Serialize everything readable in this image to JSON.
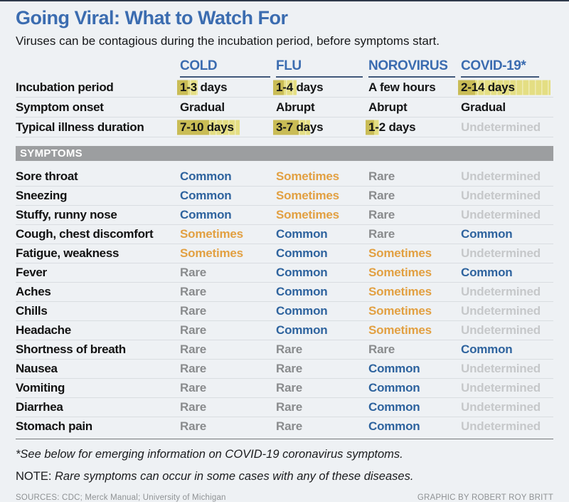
{
  "page": {
    "title": "Going Viral: What to Watch For",
    "subtitle": "Viruses can be contagious during the incubation period, before symptoms start."
  },
  "colors": {
    "accent_blue": "#3b6cb0",
    "common_blue": "#2e639e",
    "sometimes_orange": "#e2a042",
    "rare_gray": "#898b8d",
    "undetermined_gray": "#c6c8ca",
    "highlight_dark": "#c9bc55",
    "highlight_light": "#e4de83",
    "symptoms_bar_gray": "#9c9ea0"
  },
  "table": {
    "columns": [
      "COLD",
      "FLU",
      "NOROVIRUS",
      "COVID-19*"
    ],
    "info_rows": [
      {
        "label": "Incubation period",
        "cells": [
          {
            "text": "1-3 days",
            "bar": {
              "dark": 15,
              "total": 29
            }
          },
          {
            "text": "1-4 days",
            "bar": {
              "dark": 15,
              "total": 33
            }
          },
          {
            "text": "A few hours"
          },
          {
            "text": "2-14 days",
            "bar": {
              "dark": 24,
              "total": 130
            }
          }
        ]
      },
      {
        "label": "Symptom onset",
        "cells": [
          {
            "text": "Gradual"
          },
          {
            "text": "Abrupt"
          },
          {
            "text": "Abrupt"
          },
          {
            "text": "Gradual"
          }
        ]
      },
      {
        "label": "Typical illness duration",
        "cells": [
          {
            "text": "7-10 days",
            "bar": {
              "dark": 45,
              "total": 88
            }
          },
          {
            "text": "3-7 days",
            "bar": {
              "dark": 36,
              "total": 52
            }
          },
          {
            "text": "1-2 days",
            "bar": {
              "dark": 12,
              "total": 19
            }
          },
          {
            "text": "Undetermined",
            "muted": true
          }
        ]
      }
    ],
    "symptoms_header": "SYMPTOMS",
    "symptom_rows": [
      {
        "label": "Sore throat",
        "values": [
          "Common",
          "Sometimes",
          "Rare",
          "Undetermined"
        ]
      },
      {
        "label": "Sneezing",
        "values": [
          "Common",
          "Sometimes",
          "Rare",
          "Undetermined"
        ]
      },
      {
        "label": "Stuffy, runny nose",
        "values": [
          "Common",
          "Sometimes",
          "Rare",
          "Undetermined"
        ]
      },
      {
        "label": "Cough, chest discomfort",
        "values": [
          "Sometimes",
          "Common",
          "Rare",
          "Common"
        ]
      },
      {
        "label": "Fatigue, weakness",
        "values": [
          "Sometimes",
          "Common",
          "Sometimes",
          "Undetermined"
        ]
      },
      {
        "label": "Fever",
        "values": [
          "Rare",
          "Common",
          "Sometimes",
          "Common"
        ]
      },
      {
        "label": "Aches",
        "values": [
          "Rare",
          "Common",
          "Sometimes",
          "Undetermined"
        ]
      },
      {
        "label": "Chills",
        "values": [
          "Rare",
          "Common",
          "Sometimes",
          "Undetermined"
        ]
      },
      {
        "label": "Headache",
        "values": [
          "Rare",
          "Common",
          "Sometimes",
          "Undetermined"
        ]
      },
      {
        "label": "Shortness of breath",
        "values": [
          "Rare",
          "Rare",
          "Rare",
          "Common"
        ]
      },
      {
        "label": "Nausea",
        "values": [
          "Rare",
          "Rare",
          "Common",
          "Undetermined"
        ]
      },
      {
        "label": "Vomiting",
        "values": [
          "Rare",
          "Rare",
          "Common",
          "Undetermined"
        ]
      },
      {
        "label": "Diarrhea",
        "values": [
          "Rare",
          "Rare",
          "Common",
          "Undetermined"
        ]
      },
      {
        "label": "Stomach pain",
        "values": [
          "Rare",
          "Rare",
          "Common",
          "Undetermined"
        ]
      }
    ]
  },
  "footer": {
    "footnote": "*See below for emerging information on COVID-19 coronavirus symptoms.",
    "note_prefix": "NOTE:",
    "note_text": "Rare symptoms can occur in some cases with any of these diseases.",
    "sources": "SOURCES: CDC; Merck Manual; University of Michigan",
    "credit": "GRAPHIC BY ROBERT ROY BRITT"
  },
  "chart_data": {
    "type": "table",
    "title": "Going Viral: What to Watch For",
    "subtitle": "Viruses can be contagious during the incubation period, before symptoms start.",
    "columns": [
      "",
      "COLD",
      "FLU",
      "NOROVIRUS",
      "COVID-19*"
    ],
    "rows": [
      [
        "Incubation period",
        "1-3 days",
        "1-4 days",
        "A few hours",
        "2-14 days"
      ],
      [
        "Symptom onset",
        "Gradual",
        "Abrupt",
        "Abrupt",
        "Gradual"
      ],
      [
        "Typical illness duration",
        "7-10 days",
        "3-7 days",
        "1-2 days",
        "Undetermined"
      ],
      [
        "Sore throat",
        "Common",
        "Sometimes",
        "Rare",
        "Undetermined"
      ],
      [
        "Sneezing",
        "Common",
        "Sometimes",
        "Rare",
        "Undetermined"
      ],
      [
        "Stuffy, runny nose",
        "Common",
        "Sometimes",
        "Rare",
        "Undetermined"
      ],
      [
        "Cough, chest discomfort",
        "Sometimes",
        "Common",
        "Rare",
        "Common"
      ],
      [
        "Fatigue, weakness",
        "Sometimes",
        "Common",
        "Sometimes",
        "Undetermined"
      ],
      [
        "Fever",
        "Rare",
        "Common",
        "Sometimes",
        "Common"
      ],
      [
        "Aches",
        "Rare",
        "Common",
        "Sometimes",
        "Undetermined"
      ],
      [
        "Chills",
        "Rare",
        "Common",
        "Sometimes",
        "Undetermined"
      ],
      [
        "Headache",
        "Rare",
        "Common",
        "Sometimes",
        "Undetermined"
      ],
      [
        "Shortness of breath",
        "Rare",
        "Rare",
        "Rare",
        "Common"
      ],
      [
        "Nausea",
        "Rare",
        "Rare",
        "Common",
        "Undetermined"
      ],
      [
        "Vomiting",
        "Rare",
        "Rare",
        "Common",
        "Undetermined"
      ],
      [
        "Diarrhea",
        "Rare",
        "Rare",
        "Common",
        "Undetermined"
      ],
      [
        "Stomach pain",
        "Rare",
        "Rare",
        "Common",
        "Undetermined"
      ]
    ],
    "highlight_bars_days": {
      "Incubation period": {
        "COLD": [
          1,
          3
        ],
        "FLU": [
          1,
          4
        ],
        "COVID-19*": [
          2,
          14
        ]
      },
      "Typical illness duration": {
        "COLD": [
          7,
          10
        ],
        "FLU": [
          3,
          7
        ],
        "NOROVIRUS": [
          1,
          2
        ]
      }
    },
    "legend_hint": "Common=blue, Sometimes=orange, Rare=gray, Undetermined=light gray; yellow highlighter bars mark day ranges"
  }
}
